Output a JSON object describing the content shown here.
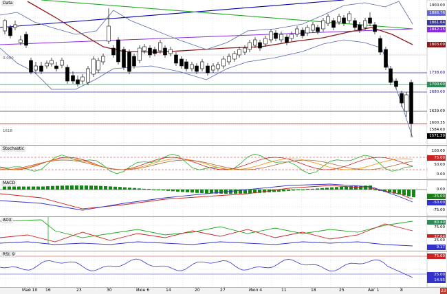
{
  "panels": {
    "price": {
      "title": "Data",
      "left_labels": [
        "0.000",
        "1618"
      ],
      "price_boxes": [
        {
          "text": "1900.00",
          "bg": "#ffffff",
          "fg": "#000000"
        },
        {
          "text": "1886.76",
          "bg": "#6666cc",
          "fg": "#ffffff"
        },
        {
          "text": "1861.64",
          "bg": "#3a3a9a",
          "fg": "#ffffff"
        },
        {
          "text": "1842.25",
          "bg": "#8a2be2",
          "fg": "#ffffff"
        },
        {
          "text": "1803.09",
          "bg": "#8b1a1a",
          "fg": "#ffffff"
        },
        {
          "text": "1738.00",
          "bg": "#ffffff",
          "fg": "#000080"
        },
        {
          "text": "1700.00",
          "bg": "#2e8b57",
          "fg": "#ffffff"
        },
        {
          "text": "1680.00",
          "bg": "#ffffff",
          "fg": "#000080"
        },
        {
          "text": "1629.09",
          "bg": "#ffffff",
          "fg": "#000000"
        },
        {
          "text": "1600.35",
          "bg": "#ffffff",
          "fg": "#000000"
        },
        {
          "text": "1584.60",
          "bg": "#ffffff",
          "fg": "#000000"
        },
        {
          "text": "1571.39",
          "bg": "#000000",
          "fg": "#ffffff"
        }
      ]
    },
    "stochastic": {
      "title": "Stochastic",
      "labels": [
        {
          "text": "100.00",
          "bg": "#ffffff",
          "fg": "#000000"
        },
        {
          "text": "75.00",
          "bg": "#cc2222",
          "fg": "#ffffff"
        },
        {
          "text": "50.00",
          "bg": "#ffffff",
          "fg": "#000000"
        },
        {
          "text": "0.00",
          "bg": "#ffffff",
          "fg": "#000000"
        }
      ]
    },
    "macd": {
      "title": "MACD",
      "labels": [
        {
          "text": "0.00",
          "bg": "#ffffff",
          "fg": "#000000"
        },
        {
          "text": "-25.00",
          "bg": "#1c7c1c",
          "fg": "#ffffff"
        },
        {
          "text": "-50.00",
          "bg": "#3333cc",
          "fg": "#ffffff"
        },
        {
          "text": "-75.00",
          "bg": "#ffffff",
          "fg": "#000000"
        }
      ]
    },
    "adx": {
      "title": "ADX",
      "labels": [
        {
          "text": "80.40",
          "bg": "#2e8b57",
          "fg": "#ffffff"
        },
        {
          "text": "75.00",
          "bg": "#ffffff",
          "fg": "#000000"
        },
        {
          "text": "37.64",
          "bg": "#cc2222",
          "fg": "#ffffff"
        },
        {
          "text": "25.00",
          "bg": "#ffffff",
          "fg": "#000000"
        },
        {
          "text": "9.17",
          "bg": "#3333cc",
          "fg": "#ffffff"
        }
      ]
    },
    "rsi": {
      "title": "RSI, 9",
      "labels": [
        {
          "text": "75.00",
          "bg": "#cc2222",
          "fg": "#ffffff"
        },
        {
          "text": "25.00",
          "bg": "#3333cc",
          "fg": "#ffffff"
        },
        {
          "text": "14.95",
          "bg": "#3333cc",
          "fg": "#ffffff"
        }
      ]
    }
  },
  "x_axis": {
    "labels": [
      "Май 10",
      "16",
      "23",
      "30",
      "Июн 6",
      "14",
      "20",
      "27",
      "Июл 4",
      "11",
      "18",
      "25",
      "Авг 1",
      "8"
    ]
  },
  "corner": "23",
  "colors": {
    "up_candle": "#ffffff",
    "down_candle": "#000000",
    "bollinger": "#5566aa",
    "ma_red": "#8b1a1a",
    "ma_purple": "#8a2be2",
    "trend_blue": "#0000aa",
    "trend_green": "#22aa22",
    "macd_hist": "#118811"
  }
}
